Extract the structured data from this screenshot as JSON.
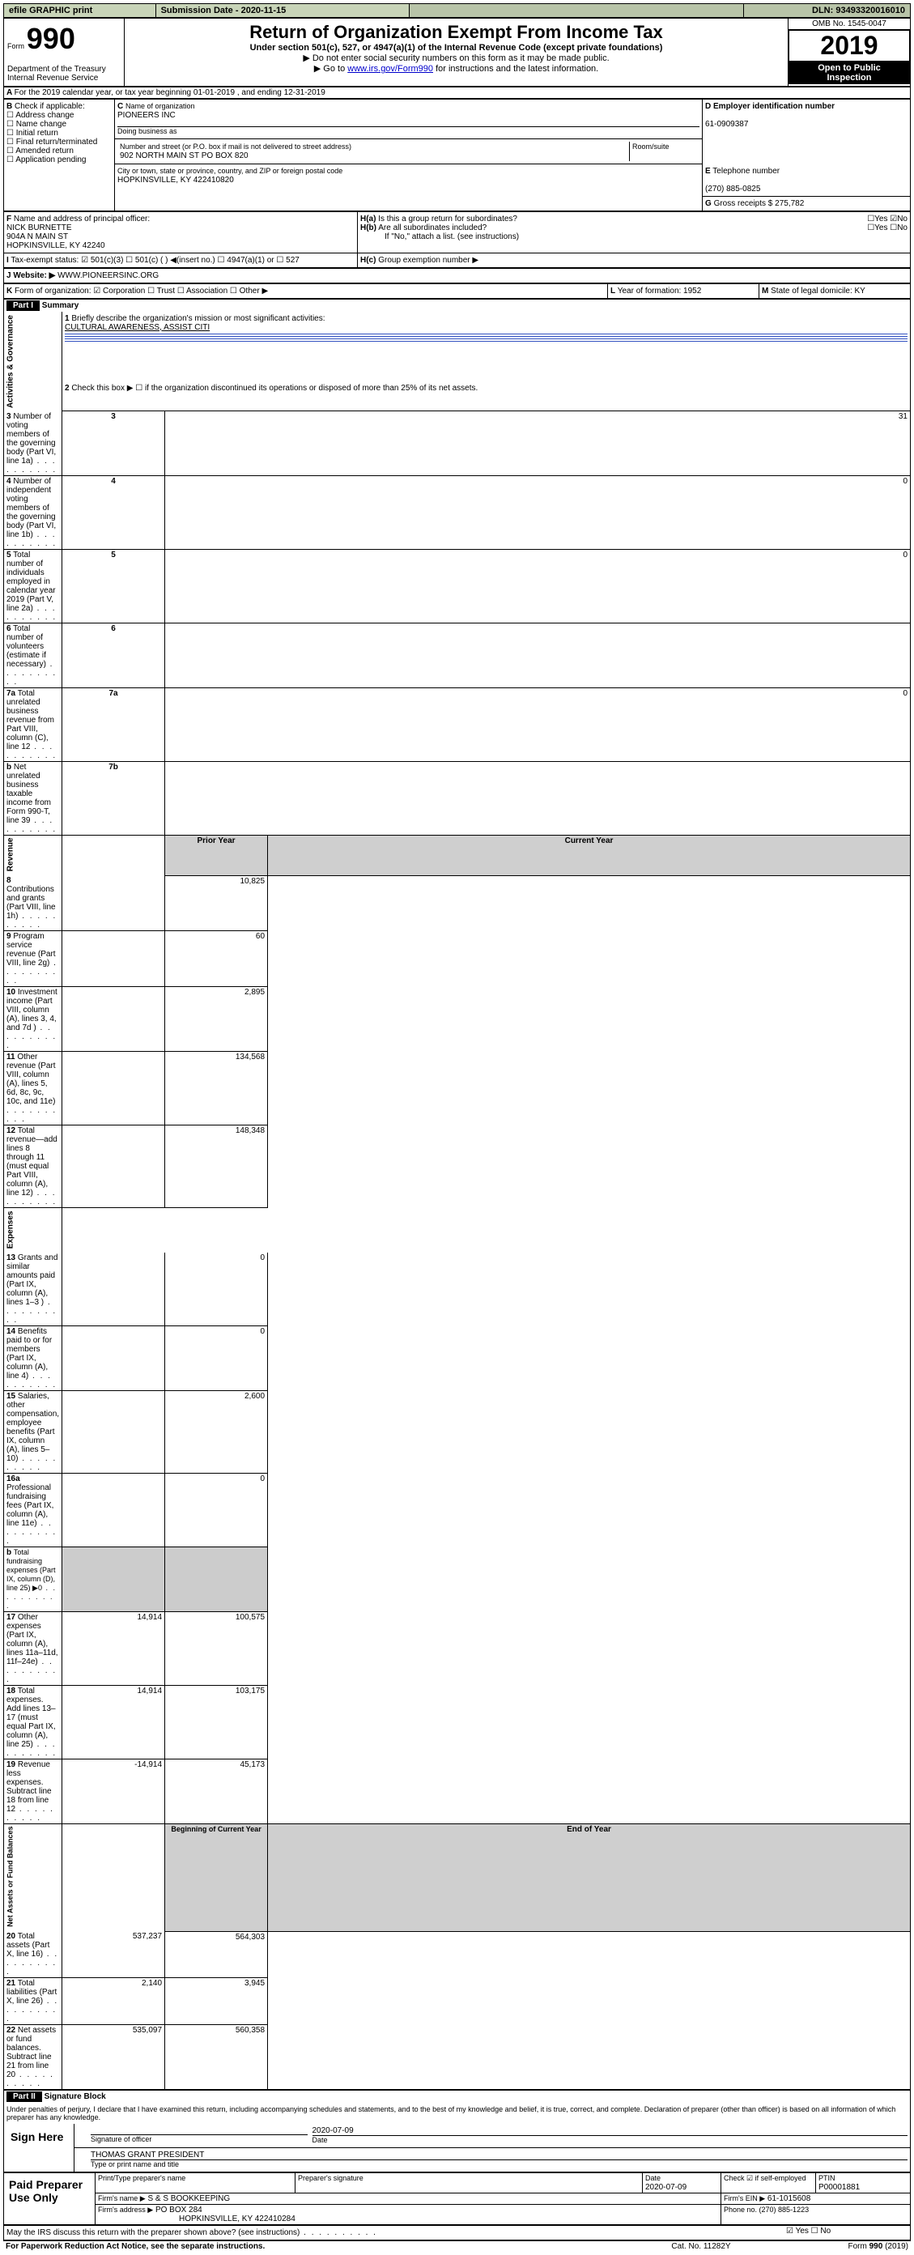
{
  "topbar": {
    "efile": "efile GRAPHIC print",
    "sub_label": "Submission Date - 2020-11-15",
    "dln": "DLN: 93493320016010"
  },
  "hdr": {
    "form": "990",
    "form_word": "Form",
    "title": "Return of Organization Exempt From Income Tax",
    "sub1": "Under section 501(c), 527, or 4947(a)(1) of the Internal Revenue Code (except private foundations)",
    "sub2": "▶ Do not enter social security numbers on this form as it may be made public.",
    "sub3": "▶ Go to ",
    "sub3_link": "www.irs.gov/Form990",
    "sub3_tail": " for instructions and the latest information.",
    "dept": "Department of the Treasury",
    "irs": "Internal Revenue Service",
    "omb": "OMB No. 1545-0047",
    "year": "2019",
    "open": "Open to Public",
    "insp": "Inspection"
  },
  "A": {
    "line": "For the 2019 calendar year, or tax year beginning 01-01-2019    , and ending 12-31-2019"
  },
  "B": {
    "hdr": "Check if applicable:",
    "items": [
      "Address change",
      "Name change",
      "Initial return",
      "Final return/terminated",
      "Amended return",
      "Application pending"
    ]
  },
  "C": {
    "label": "Name of organization",
    "name": "PIONEERS INC",
    "dba": "Doing business as",
    "addr_label": "Number and street (or P.O. box if mail is not delivered to street address)",
    "room": "Room/suite",
    "addr": "902 NORTH MAIN ST PO BOX 820",
    "city_label": "City or town, state or province, country, and ZIP or foreign postal code",
    "city": "HOPKINSVILLE, KY  422410820"
  },
  "D": {
    "label": "Employer identification number",
    "val": "61-0909387"
  },
  "E": {
    "label": "Telephone number",
    "val": "(270) 885-0825"
  },
  "G": {
    "label": "Gross receipts $ 275,782"
  },
  "F": {
    "label": "Name and address of principal officer:",
    "name": "NICK BURNETTE",
    "a1": "904A N MAIN ST",
    "a2": "HOPKINSVILLE, KY  42240"
  },
  "H": {
    "a": "Is this a group return for subordinates?",
    "b": "Are all subordinates included?",
    "b2": "If \"No,\" attach a list. (see instructions)",
    "c": "Group exemption number ▶"
  },
  "I": {
    "label": "Tax-exempt status:",
    "opts": [
      "501(c)(3)",
      "501(c) (  ) ◀ (insert no.)",
      "4947(a)(1) or",
      "527"
    ]
  },
  "J": {
    "label": "Website: ▶",
    "val": "WWW.PIONEERSINC.ORG"
  },
  "K": {
    "label": "Form of organization:",
    "opts": [
      "Corporation",
      "Trust",
      "Association",
      "Other ▶"
    ]
  },
  "L": {
    "label": "Year of formation: 1952"
  },
  "M": {
    "label": "State of legal domicile: KY"
  },
  "part1": {
    "hdr": "Part I",
    "title": "Summary",
    "section1": "Activities & Governance",
    "section2": "Revenue",
    "section3": "Expenses",
    "section4": "Net Assets or Fund Balances",
    "l1": "Briefly describe the organization's mission or most significant activities:",
    "l1v": "CULTURAL AWARENESS, ASSIST CITI",
    "l2": "Check this box ▶ ☐  if the organization discontinued its operations or disposed of more than 25% of its net assets.",
    "rows_gov": [
      {
        "n": "3",
        "t": "Number of voting members of the governing body (Part VI, line 1a)",
        "v": "31"
      },
      {
        "n": "4",
        "t": "Number of independent voting members of the governing body (Part VI, line 1b)",
        "v": "0"
      },
      {
        "n": "5",
        "t": "Total number of individuals employed in calendar year 2019 (Part V, line 2a)",
        "v": "0"
      },
      {
        "n": "6",
        "t": "Total number of volunteers (estimate if necessary)",
        "v": ""
      },
      {
        "n": "7a",
        "t": "Total unrelated business revenue from Part VIII, column (C), line 12",
        "v": "0"
      },
      {
        "n": "b",
        "t": "Net unrelated business taxable income from Form 990-T, line 39",
        "nb": "7b",
        "v": ""
      }
    ],
    "col_hdr1": "Prior Year",
    "col_hdr2": "Current Year",
    "rows_rev": [
      {
        "n": "8",
        "t": "Contributions and grants (Part VIII, line 1h)",
        "p": "",
        "c": "10,825"
      },
      {
        "n": "9",
        "t": "Program service revenue (Part VIII, line 2g)",
        "p": "",
        "c": "60"
      },
      {
        "n": "10",
        "t": "Investment income (Part VIII, column (A), lines 3, 4, and 7d )",
        "p": "",
        "c": "2,895"
      },
      {
        "n": "11",
        "t": "Other revenue (Part VIII, column (A), lines 5, 6d, 8c, 9c, 10c, and 11e)",
        "p": "",
        "c": "134,568"
      },
      {
        "n": "12",
        "t": "Total revenue—add lines 8 through 11 (must equal Part VIII, column (A), line 12)",
        "p": "",
        "c": "148,348"
      }
    ],
    "rows_exp": [
      {
        "n": "13",
        "t": "Grants and similar amounts paid (Part IX, column (A), lines 1–3 )",
        "p": "",
        "c": "0"
      },
      {
        "n": "14",
        "t": "Benefits paid to or for members (Part IX, column (A), line 4)",
        "p": "",
        "c": "0"
      },
      {
        "n": "15",
        "t": "Salaries, other compensation, employee benefits (Part IX, column (A), lines 5–10)",
        "p": "",
        "c": "2,600"
      },
      {
        "n": "16a",
        "t": "Professional fundraising fees (Part IX, column (A), line 11e)",
        "p": "",
        "c": "0"
      },
      {
        "n": "b",
        "t": "Total fundraising expenses (Part IX, column (D), line 25) ▶0",
        "p": "—",
        "c": "—"
      },
      {
        "n": "17",
        "t": "Other expenses (Part IX, column (A), lines 11a–11d, 11f–24e)",
        "p": "14,914",
        "c": "100,575"
      },
      {
        "n": "18",
        "t": "Total expenses. Add lines 13–17 (must equal Part IX, column (A), line 25)",
        "p": "14,914",
        "c": "103,175"
      },
      {
        "n": "19",
        "t": "Revenue less expenses. Subtract line 18 from line 12",
        "p": "-14,914",
        "c": "45,173"
      }
    ],
    "col_hdr3": "Beginning of Current Year",
    "col_hdr4": "End of Year",
    "rows_net": [
      {
        "n": "20",
        "t": "Total assets (Part X, line 16)",
        "p": "537,237",
        "c": "564,303"
      },
      {
        "n": "21",
        "t": "Total liabilities (Part X, line 26)",
        "p": "2,140",
        "c": "3,945"
      },
      {
        "n": "22",
        "t": "Net assets or fund balances. Subtract line 21 from line 20",
        "p": "535,097",
        "c": "560,358"
      }
    ]
  },
  "part2": {
    "hdr": "Part II",
    "title": "Signature Block",
    "decl": "Under penalties of perjury, I declare that I have examined this return, including accompanying schedules and statements, and to the best of my knowledge and belief, it is true, correct, and complete. Declaration of preparer (other than officer) is based on all information of which preparer has any knowledge.",
    "sign": "Sign Here",
    "sig_off": "Signature of officer",
    "date1": "2020-07-09",
    "date_l": "Date",
    "name_off": "THOMAS GRANT PRESIDENT",
    "type_l": "Type or print name and title",
    "paid": "Paid Preparer Use Only",
    "pp_name_l": "Print/Type preparer's name",
    "pp_sig_l": "Preparer's signature",
    "pp_date_l": "Date",
    "pp_date": "2020-07-09",
    "pp_check": "Check ☑ if self-employed",
    "ptin_l": "PTIN",
    "ptin": "P00001881",
    "firm_name_l": "Firm's name  ▶",
    "firm_name": "S & S BOOKKEEPING",
    "firm_ein_l": "Firm's EIN ▶",
    "firm_ein": "61-1015608",
    "firm_addr_l": "Firm's address ▶",
    "firm_addr": "PO BOX 284",
    "firm_city": "HOPKINSVILLE, KY  422410284",
    "phone_l": "Phone no. (270) 885-1223",
    "discuss": "May the IRS discuss this return with the preparer shown above? (see instructions)",
    "foot1": "For Paperwork Reduction Act Notice, see the separate instructions.",
    "foot2": "Cat. No. 11282Y",
    "foot3": "Form 990 (2019)"
  }
}
